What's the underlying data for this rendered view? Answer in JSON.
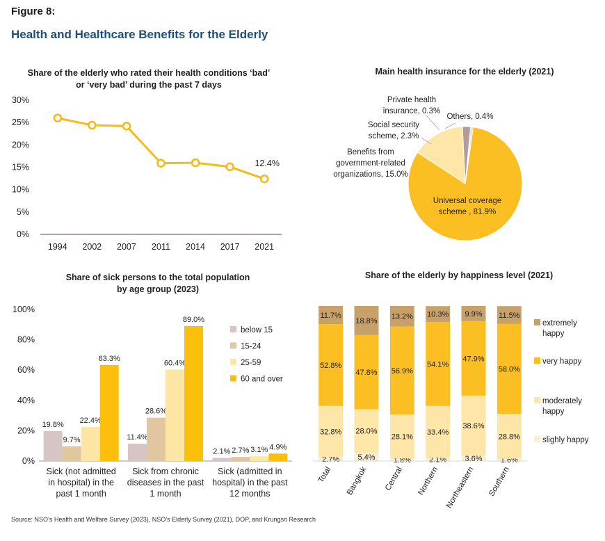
{
  "figure_label": "Figure 8:",
  "figure_title": "Health and Healthcare Benefits for the Elderly",
  "source": "Source: NSO’s Health and Welfare Survey (2023), NSO’s Elderly Survey (2021), DOP, and Krungsri Research",
  "colors": {
    "line": "#f8b91a",
    "below15": "#d7c5c5",
    "age15_24": "#e1c7a0",
    "age25_59": "#fde5a3",
    "age60over": "#fbbf0c",
    "extremely_happy": "#c8a069",
    "very_happy": "#fbbf24",
    "moderately_happy": "#fde6a8",
    "slightly_happy": "#f7eed6",
    "pie_universal": "#fbbf24",
    "pie_benefits": "#fde6a8",
    "pie_social": "#b19d97",
    "pie_private": "#a2a2a2",
    "pie_others": "#d6cbc0"
  },
  "chart_data": [
    {
      "type": "line",
      "title_lines": [
        "Share of the elderly who rated their health conditions ‘bad’",
        "or ‘very bad’ during the past 7 days"
      ],
      "x": [
        "1994",
        "2002",
        "2007",
        "2011",
        "2014",
        "2017",
        "2021"
      ],
      "values": [
        26.0,
        24.4,
        24.2,
        15.9,
        16.0,
        15.1,
        12.4
      ],
      "last_label": "12.4%",
      "y_ticks": [
        "0%",
        "5%",
        "10%",
        "15%",
        "20%",
        "25%",
        "30%"
      ],
      "ylim": [
        0,
        30
      ],
      "grid": false
    },
    {
      "type": "pie",
      "title": "Main health insurance for the elderly (2021)",
      "slices": [
        {
          "key": "universal",
          "value": 81.9,
          "label_lines": [
            "Universal coverage",
            "scheme , 81.9%"
          ]
        },
        {
          "key": "benefits",
          "value": 15.0,
          "label_lines": [
            "Benefits from",
            "government-related",
            "organizations, 15.0%"
          ]
        },
        {
          "key": "social",
          "value": 2.3,
          "label_lines": [
            "Social security",
            "scheme, 2.3%"
          ]
        },
        {
          "key": "private",
          "value": 0.3,
          "label_lines": [
            "Private health",
            "insurance, 0.3%"
          ]
        },
        {
          "key": "others",
          "value": 0.4,
          "label_lines": [
            "Others, 0.4%"
          ]
        }
      ]
    },
    {
      "type": "bar",
      "title_lines": [
        "Share of sick persons to the total population",
        "by age group (2023)"
      ],
      "category_lines": [
        [
          "Sick (not admitted",
          "in hospital) in the",
          "past 1 month"
        ],
        [
          "Sick from chronic",
          "diseases in the past",
          "1 month"
        ],
        [
          "Sick (admitted in",
          "hospital) in the past",
          "12 months"
        ]
      ],
      "series": [
        {
          "name": "below 15",
          "key": "below15",
          "values": [
            19.8,
            11.4,
            2.1
          ],
          "labels": [
            "19.8%",
            "11.4%",
            "2.1%"
          ]
        },
        {
          "name": "15-24",
          "key": "age15_24",
          "values": [
            9.7,
            28.6,
            2.7
          ],
          "labels": [
            "9.7%",
            "28.6%",
            "2.7%"
          ]
        },
        {
          "name": "25-59",
          "key": "age25_59",
          "values": [
            22.4,
            60.4,
            3.1
          ],
          "labels": [
            "22.4%",
            "60.4%",
            "3.1%"
          ]
        },
        {
          "name": "60 and over",
          "key": "age60over",
          "values": [
            63.3,
            89.0,
            4.9
          ],
          "labels": [
            "63.3%",
            "89.0%",
            "4.9%"
          ]
        }
      ],
      "y_ticks": [
        "0%",
        "20%",
        "40%",
        "60%",
        "80%",
        "100%"
      ],
      "ylim": [
        0,
        100
      ],
      "legend": "right"
    },
    {
      "type": "stacked_bar",
      "title": "Share of the elderly by happiness level (2021)",
      "categories": [
        "Total",
        "Bangkok",
        "Central",
        "Northern",
        "Northeastern",
        "Southern"
      ],
      "series": [
        {
          "name": "slighly happy",
          "key": "slightly_happy",
          "values": [
            2.7,
            5.4,
            1.8,
            2.1,
            3.6,
            1.6
          ],
          "labels": [
            "2.7%",
            "5.4%",
            "1.8%",
            "2.1%",
            "3.6%",
            "1.6%"
          ]
        },
        {
          "name": "moderately happy",
          "key": "moderately_happy",
          "values": [
            32.8,
            28.0,
            28.1,
            33.4,
            38.6,
            28.8
          ],
          "labels": [
            "32.8%",
            "28.0%",
            "28.1%",
            "33.4%",
            "38.6%",
            "28.8%"
          ]
        },
        {
          "name": "very happy",
          "key": "very_happy",
          "values": [
            52.8,
            47.8,
            56.9,
            54.1,
            47.9,
            58.0
          ],
          "labels": [
            "52.8%",
            "47.8%",
            "56.9%",
            "54.1%",
            "47.9%",
            "58.0%"
          ]
        },
        {
          "name": "extremely happy",
          "key": "extremely_happy",
          "values": [
            11.7,
            18.8,
            13.2,
            10.3,
            9.9,
            11.5
          ],
          "labels": [
            "11.7%",
            "18.8%",
            "13.2%",
            "10.3%",
            "9.9%",
            "11.5%"
          ]
        }
      ],
      "legend_order": [
        {
          "key": "extremely_happy",
          "lines": [
            "extremely",
            "happy"
          ]
        },
        {
          "key": "very_happy",
          "lines": [
            "very happy"
          ]
        },
        {
          "key": "moderately_happy",
          "lines": [
            "moderately",
            "happy"
          ]
        },
        {
          "key": "slightly_happy",
          "lines": [
            "slighly happy"
          ]
        }
      ],
      "ylim": [
        0,
        100
      ],
      "legend": "right"
    }
  ]
}
